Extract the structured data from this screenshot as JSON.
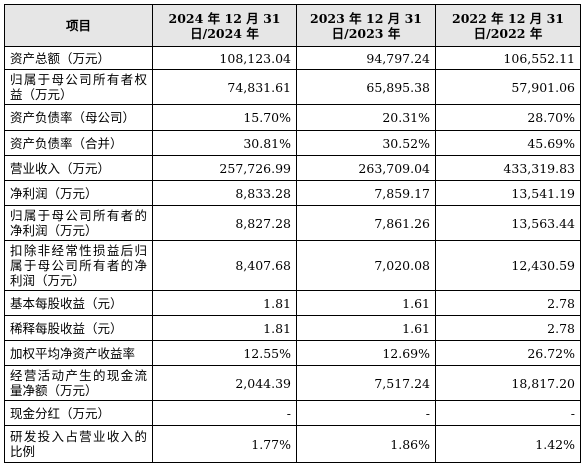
{
  "table": {
    "header": [
      "项目",
      "2024 年 12 月 31 日/2024 年",
      "2023 年 12 月 31 日/2023 年",
      "2022 年 12 月 31 日/2022 年"
    ],
    "rows": [
      [
        "资产总额（万元）",
        "108,123.04",
        "94,797.24",
        "106,552.11"
      ],
      [
        "归属于母公司所有者权益（万元）",
        "74,831.61",
        "65,895.38",
        "57,901.06"
      ],
      [
        "资产负债率（母公司）",
        "15.70%",
        "20.31%",
        "28.70%"
      ],
      [
        "资产负债率（合并）",
        "30.81%",
        "30.52%",
        "45.69%"
      ],
      [
        "营业收入（万元）",
        "257,726.99",
        "263,709.04",
        "433,319.83"
      ],
      [
        "净利润（万元）",
        "8,833.28",
        "7,859.17",
        "13,541.19"
      ],
      [
        "归属于母公司所有者的净利润（万元）",
        "8,827.28",
        "7,861.26",
        "13,563.44"
      ],
      [
        "扣除非经常性损益后归属于母公司所有者的净利润（万元）",
        "8,407.68",
        "7,020.08",
        "12,430.59"
      ],
      [
        "基本每股收益（元）",
        "1.81",
        "1.61",
        "2.78"
      ],
      [
        "稀释每股收益（元）",
        "1.81",
        "1.61",
        "2.78"
      ],
      [
        "加权平均净资产收益率",
        "12.55%",
        "12.69%",
        "26.72%"
      ],
      [
        "经营活动产生的现金流量净额（万元）",
        "2,044.39",
        "7,517.24",
        "18,817.20"
      ],
      [
        "现金分红（万元）",
        "-",
        "-",
        "-"
      ],
      [
        "研发投入占营业收入的比例",
        "1.77%",
        "1.86%",
        "1.42%"
      ]
    ]
  }
}
